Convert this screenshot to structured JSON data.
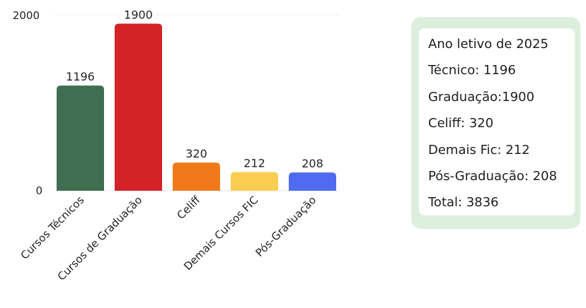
{
  "chart_data": {
    "type": "bar",
    "categories": [
      "Cursos Técnicos",
      "Cursos de Graduação",
      "Celiff",
      "Demais Cursos FIC",
      "Pós-Graduação"
    ],
    "values": [
      1196,
      1900,
      320,
      212,
      208
    ],
    "data_labels": [
      "1196",
      "1900",
      "320",
      "212",
      "208"
    ],
    "colors": [
      "#3f6e50",
      "#d32228",
      "#f07a1a",
      "#f9cd50",
      "#4f6cf0"
    ],
    "yticks": [
      "0",
      "2000"
    ],
    "ylim": [
      0,
      2000
    ],
    "grid": false,
    "legend": "none"
  },
  "info_box": {
    "lines": [
      "Ano letivo de 2025",
      "Técnico: 1196",
      "Graduação:1900",
      "Celiff: 320",
      "Demais Fic: 212",
      "Pós-Graduação: 208",
      "Total: 3836"
    ]
  }
}
